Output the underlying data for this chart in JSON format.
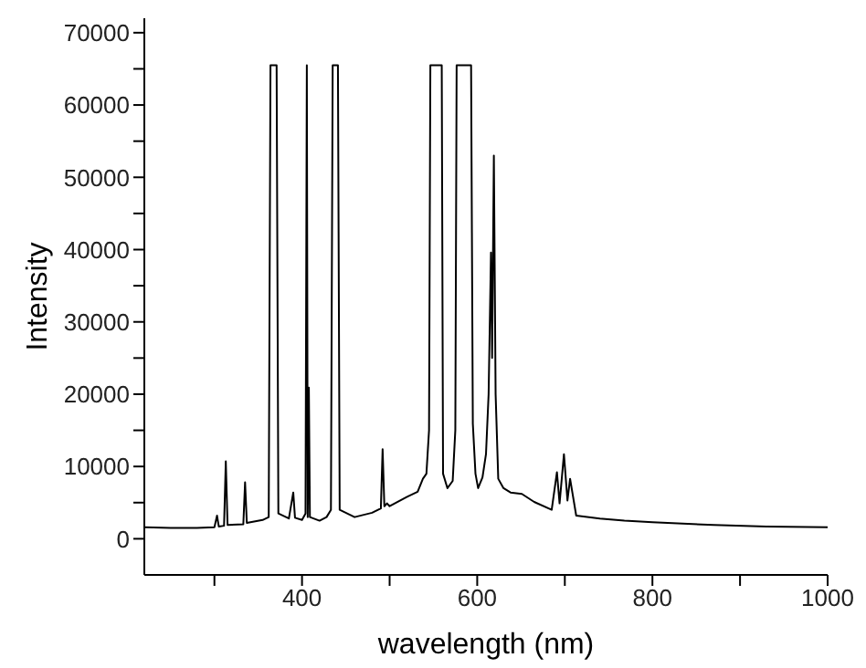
{
  "chart_data": {
    "type": "line",
    "xlabel": "wavelength (nm)",
    "ylabel": "Intensity",
    "xlim": [
      220,
      1000
    ],
    "xticks": [
      {
        "value": 300,
        "label": null
      },
      400,
      {
        "value": 500,
        "label": null
      },
      600,
      {
        "value": 700,
        "label": null
      },
      800,
      {
        "value": 900,
        "label": null
      },
      1000
    ],
    "ylim": [
      -5000,
      72000
    ],
    "yticks": [
      0,
      {
        "value": 5000,
        "label": null
      },
      10000,
      {
        "value": 15000,
        "label": null
      },
      20000,
      {
        "value": 25000,
        "label": null
      },
      30000,
      {
        "value": 35000,
        "label": null
      },
      40000,
      {
        "value": 45000,
        "label": null
      },
      50000,
      {
        "value": 55000,
        "label": null
      },
      60000,
      {
        "value": 65000,
        "label": null
      },
      70000
    ],
    "grid": false,
    "legend": false,
    "marker": "none",
    "line_style": "solid",
    "x": [
      220,
      250,
      280,
      300,
      303,
      305,
      311,
      313,
      315,
      333,
      335,
      337,
      355,
      362,
      364,
      371,
      373,
      385,
      390,
      392,
      400,
      404,
      405.5,
      406.5,
      407.8,
      409,
      420,
      428,
      433,
      435,
      441,
      443,
      460,
      480,
      490,
      492,
      494,
      497,
      500,
      520,
      532,
      538,
      542,
      545,
      546.5,
      559.5,
      561,
      566,
      572,
      575,
      576.5,
      593,
      595,
      598,
      601,
      606,
      610,
      613,
      615.7,
      617,
      619,
      621,
      624,
      630,
      638,
      651,
      665,
      685,
      691,
      694,
      699,
      703,
      706,
      713,
      740,
      768,
      800,
      870,
      930,
      1000
    ],
    "series": [
      {
        "color": "#000000",
        "values": [
          1600,
          1500,
          1500,
          1600,
          3200,
          1700,
          1800,
          10700,
          1900,
          2000,
          7800,
          2200,
          2600,
          3000,
          65500,
          65500,
          3500,
          2800,
          6400,
          2900,
          2600,
          3500,
          65500,
          3000,
          20900,
          3000,
          2500,
          3000,
          4000,
          65500,
          65500,
          4000,
          3000,
          3600,
          4200,
          12400,
          4500,
          4900,
          4500,
          5800,
          6500,
          8300,
          9000,
          15000,
          65500,
          65500,
          9000,
          7000,
          8000,
          15000,
          65500,
          65500,
          15900,
          9000,
          7000,
          8500,
          11700,
          20000,
          39600,
          25000,
          53000,
          20000,
          8300,
          7000,
          6400,
          6200,
          5100,
          4000,
          9200,
          4900,
          11700,
          5300,
          8300,
          3200,
          2800,
          2500,
          2300,
          1900,
          1700,
          1600
        ]
      }
    ]
  }
}
